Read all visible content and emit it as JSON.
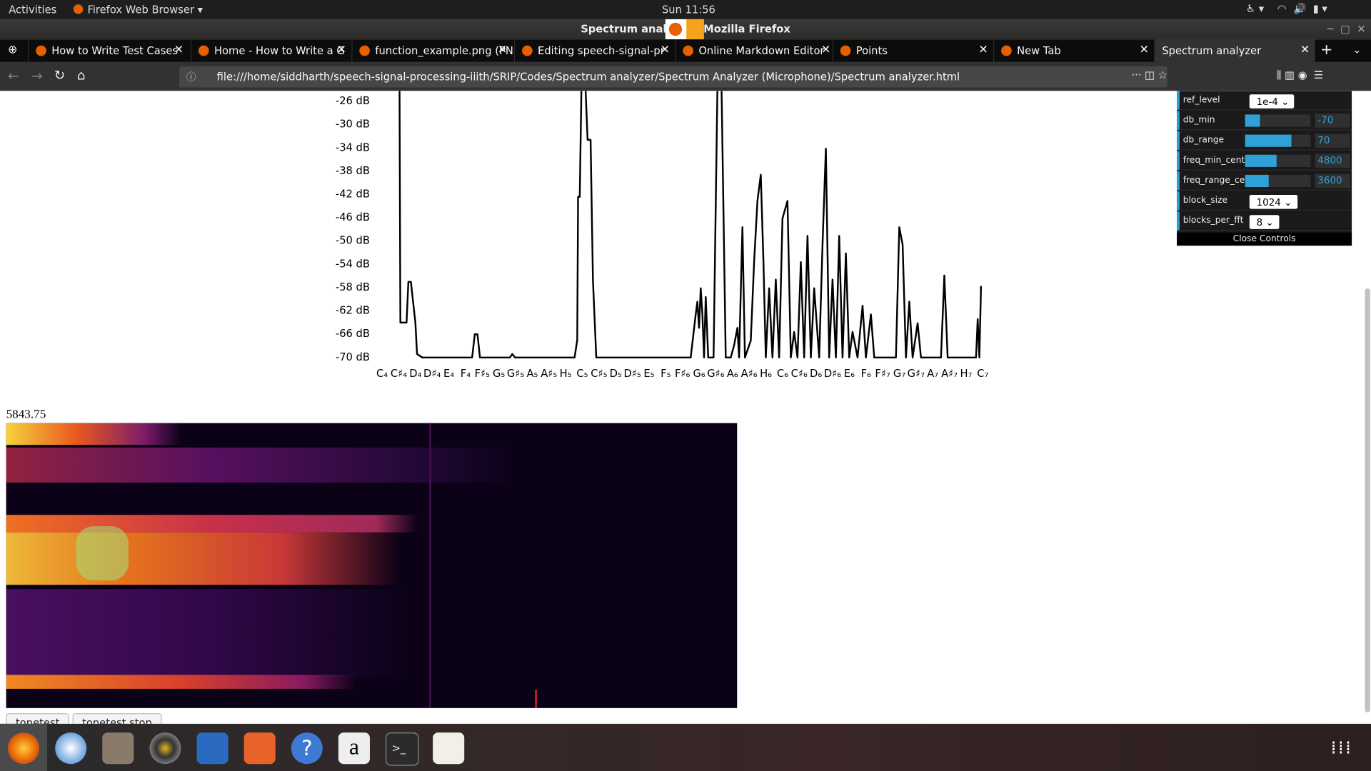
{
  "topbar": {
    "activities": "Activities",
    "app": "Firefox Web Browser ▾",
    "clock": "Sun 11:56"
  },
  "window_title": "Spectrum analyzer - Mozilla Firefox",
  "tabs": [
    "How to Write Test Cases",
    "Home - How to Write a G",
    "function_example.png (PNG",
    "Editing speech-signal-pr",
    "Online Markdown Editor",
    "Points",
    "New Tab",
    "Spectrum analyzer"
  ],
  "url": "file:///home/siddharth/speech-signal-processing-iiith/SRIP/Codes/Spectrum analyzer/Spectrum Analyzer (Microphone)/Spectrum analyzer.html",
  "spectrum": {
    "color": "#000000",
    "xlim": [
      0,
      36
    ],
    "ylim": [
      -70,
      -26
    ],
    "yticks": [
      {
        "value": -26,
        "label": "-26 dB"
      },
      {
        "value": -30,
        "label": "-30 dB"
      },
      {
        "value": -34,
        "label": "-34 dB"
      },
      {
        "value": -38,
        "label": "-38 dB"
      },
      {
        "value": -42,
        "label": "-42 dB"
      },
      {
        "value": -46,
        "label": "-46 dB"
      },
      {
        "value": -50,
        "label": "-50 dB"
      },
      {
        "value": -54,
        "label": "-54 dB"
      },
      {
        "value": -58,
        "label": "-58 dB"
      },
      {
        "value": -62,
        "label": "-62 dB"
      },
      {
        "value": -66,
        "label": "-66 dB"
      },
      {
        "value": -70,
        "label": "-70 dB"
      }
    ],
    "categories": [
      "C₄",
      "C♯₄",
      "D₄",
      "D♯₄",
      "E₄",
      "F₄",
      "F♯₅",
      "G₅",
      "G♯₅",
      "A₅",
      "A♯₅",
      "H₅",
      "C₅",
      "C♯₅",
      "D₅",
      "D♯₅",
      "E₅",
      "F₅",
      "F♯₆",
      "G₆",
      "G♯₆",
      "A₆",
      "A♯₆",
      "H₆",
      "C₆",
      "C♯₆",
      "D₆",
      "D♯₆",
      "E₆",
      "F₆",
      "F♯₇",
      "G₇",
      "G♯₇",
      "A₇",
      "A♯₇",
      "H₇",
      "C₇"
    ],
    "x": [
      1.15,
      1.2,
      1.57,
      1.68,
      1.83,
      2.1,
      2.2,
      2.52,
      5.5,
      5.66,
      5.82,
      5.97,
      7.76,
      7.91,
      8.07,
      11.64,
      11.8,
      11.85,
      11.95,
      12.05,
      12.3,
      12.42,
      12.6,
      12.74,
      12.94,
      18.6,
      18.9,
      19.0,
      19.1,
      19.2,
      19.3,
      19.4,
      19.5,
      19.65,
      19.97,
      20.2,
      20.45,
      20.7,
      21.0,
      21.2,
      21.4,
      21.5,
      21.7,
      21.85,
      22.2,
      22.4,
      22.6,
      22.8,
      22.96,
      23.1,
      23.3,
      23.5,
      23.7,
      23.9,
      24.1,
      24.4,
      24.6,
      24.8,
      25.0,
      25.2,
      25.4,
      25.6,
      25.8,
      26.0,
      26.3,
      26.5,
      26.7,
      26.9,
      27.1,
      27.3,
      27.5,
      27.7,
      27.9,
      28.1,
      28.3,
      28.6,
      28.9,
      29.1,
      29.4,
      29.6,
      30.9,
      31.1,
      31.3,
      31.5,
      31.7,
      31.9,
      32.2,
      32.4,
      33.6,
      33.8,
      34.0,
      35.7,
      35.8,
      35.9,
      36.0
    ],
    "values": [
      -24,
      -64,
      -64,
      -57,
      -57,
      -64,
      -69.4,
      -70,
      -70,
      -66,
      -66,
      -70,
      -70,
      -69.4,
      -70,
      -70,
      -67,
      -42.4,
      -42.4,
      -24,
      -24,
      -32.6,
      -32.6,
      -56.6,
      -70,
      -70,
      -62.6,
      -60.4,
      -64.9,
      -58.1,
      -62.6,
      -70,
      -59.6,
      -70,
      -70,
      -24,
      -24,
      -70,
      -70,
      -67.9,
      -64.9,
      -70,
      -47.6,
      -70,
      -67.1,
      -53.6,
      -43.1,
      -38.6,
      -53.6,
      -70,
      -58.1,
      -70,
      -56.6,
      -70,
      -46.1,
      -43.1,
      -70,
      -65.6,
      -70,
      -53.6,
      -70,
      -49.1,
      -70,
      -58.1,
      -70,
      -50.6,
      -34.1,
      -70,
      -56.6,
      -70,
      -49.1,
      -70,
      -52.1,
      -70,
      -65.6,
      -70,
      -61.1,
      -70,
      -62.6,
      -70,
      -70,
      -47.6,
      -50.6,
      -70,
      -60.4,
      -70,
      -64.1,
      -70,
      -70,
      -55.9,
      -70,
      -70,
      -63.4,
      -70,
      -57.7
    ]
  },
  "controls": {
    "rows": [
      {
        "label": "ref_level",
        "value": "1e-4"
      },
      {
        "label": "db_min",
        "value": -70
      },
      {
        "label": "db_range",
        "value": 70
      },
      {
        "label": "freq_min_cents",
        "value": 4800
      },
      {
        "label": "freq_range_ce...",
        "value": 3600
      },
      {
        "label": "block_size",
        "value": 1024
      },
      {
        "label": "blocks_per_fft",
        "value": 8
      }
    ],
    "close": "Close Controls"
  },
  "peak_frequency": "5843.75",
  "buttons": [
    "tonetest",
    "tonetest stop"
  ]
}
